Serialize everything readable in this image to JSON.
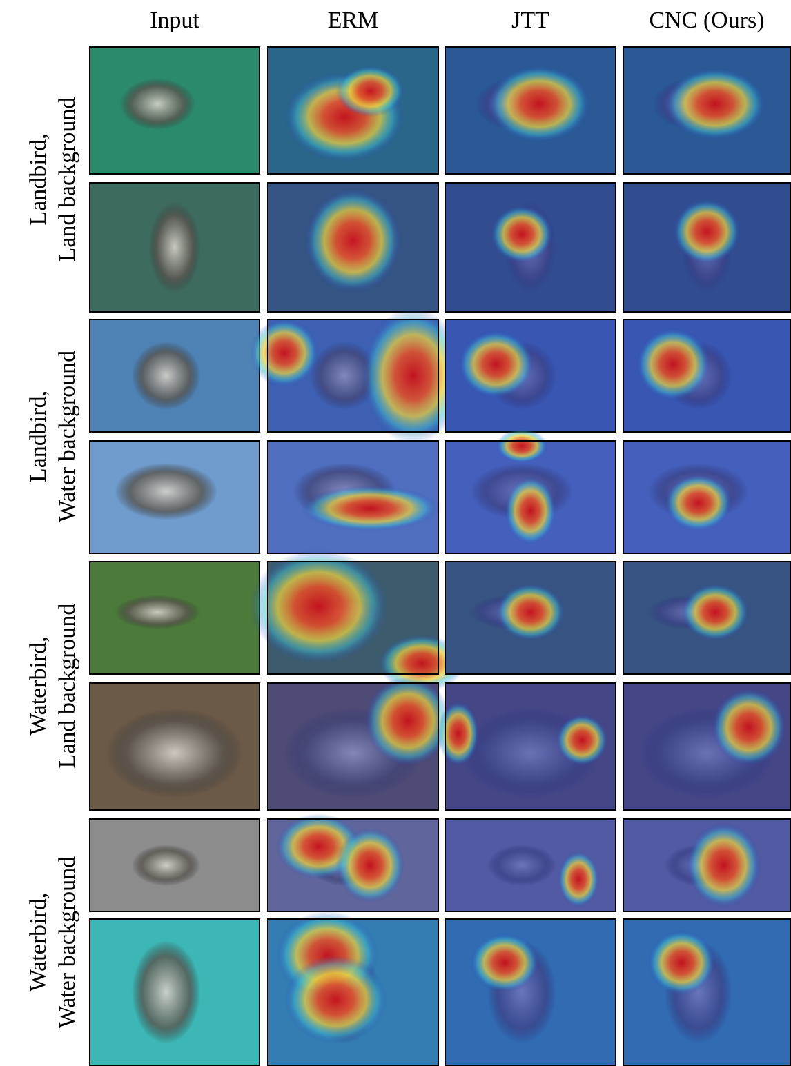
{
  "columns": [
    "Input",
    "ERM",
    "JTT",
    "CNC (Ours)"
  ],
  "row_groups": [
    {
      "lines": [
        "Landbird,",
        "Land background"
      ]
    },
    {
      "lines": [
        "Landbird,",
        "Water background"
      ]
    },
    {
      "lines": [
        "Waterbird,",
        "Land background"
      ]
    },
    {
      "lines": [
        "Waterbird,",
        "Water background"
      ]
    }
  ]
}
